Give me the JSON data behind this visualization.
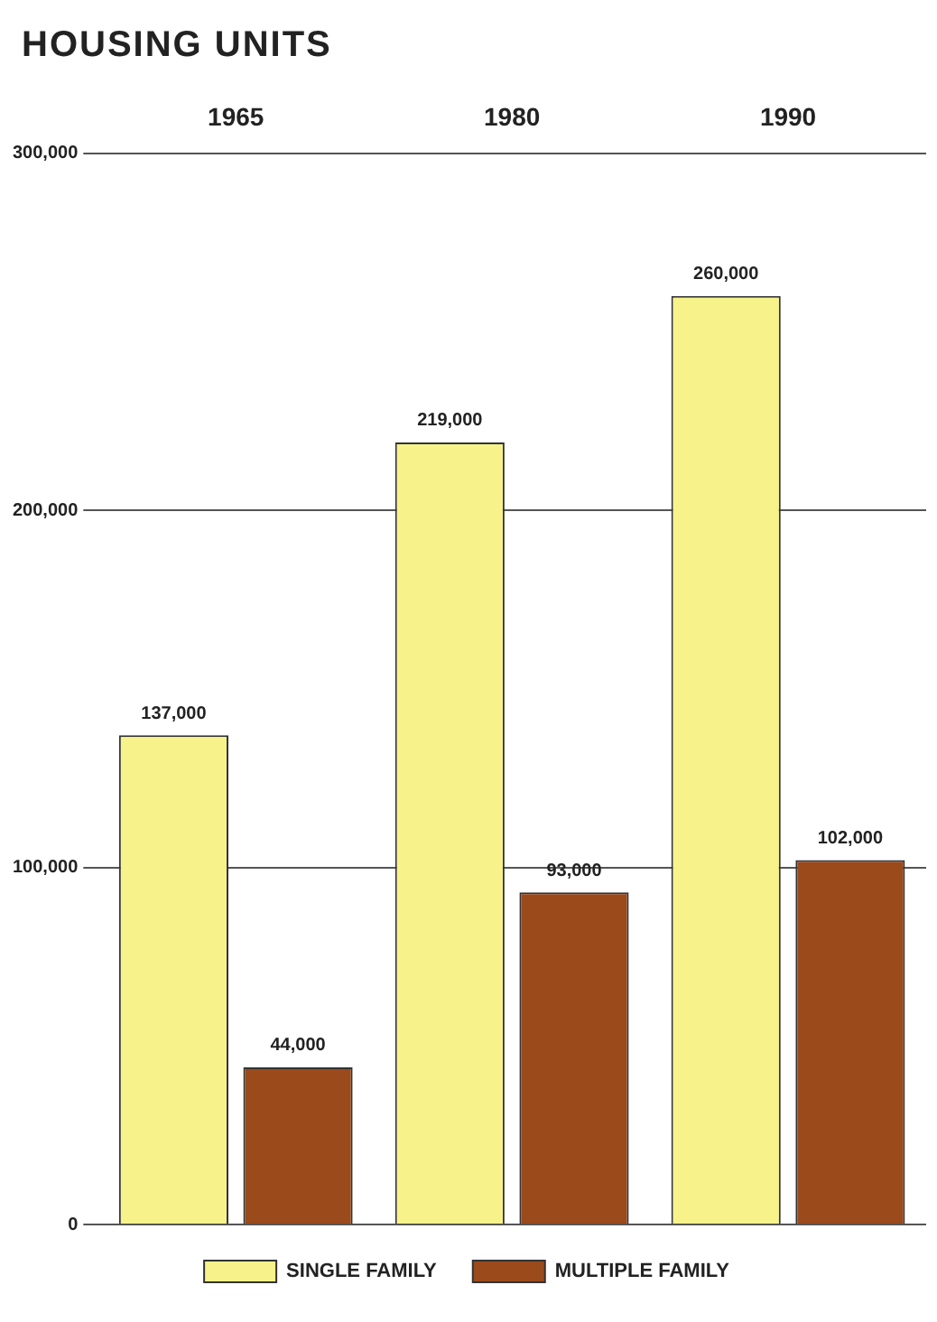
{
  "chart_data": {
    "type": "bar",
    "title": "HOUSING UNITS",
    "categories": [
      "1965",
      "1980",
      "1990"
    ],
    "series": [
      {
        "name": "SINGLE FAMILY",
        "color": "#f7f38a",
        "values": [
          137000,
          219000,
          260000
        ],
        "value_labels": [
          "137,000",
          "219,000",
          "260,000"
        ]
      },
      {
        "name": "MULTIPLE FAMILY",
        "color": "#9b4a1c",
        "values": [
          44000,
          93000,
          102000
        ],
        "value_labels": [
          "44,000",
          "93,000",
          "102,000"
        ]
      }
    ],
    "ylim": [
      0,
      300000
    ],
    "yticks": [
      0,
      {
        "value": 100000,
        "label": "100,000"
      },
      {
        "value": 200000,
        "label": "200,000"
      },
      {
        "value": 300000,
        "label": "300,000"
      }
    ],
    "grid": "y",
    "legend": "bottom"
  }
}
